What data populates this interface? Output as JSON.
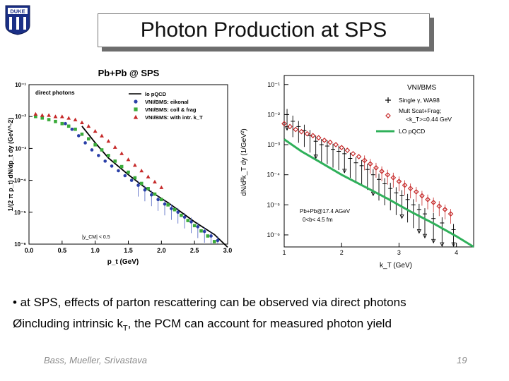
{
  "slide": {
    "title": "Photon Production at SPS",
    "bullet1": "• at SPS, effects of parton rescattering can be observed via direct photons",
    "bullet2_arrow": "Ø",
    "bullet2_pre": "including intrinsic k",
    "bullet2_sub": "T",
    "bullet2_post": ", the PCM can account for measured photon yield",
    "footer_left": "Bass, Mueller, Srivastava",
    "footer_right": "19",
    "logo_text": "DUKE"
  },
  "chart_data": [
    {
      "type": "scatter",
      "title": "Pb+Pb @ SPS",
      "xlabel": "p_t (GeV)",
      "ylabel": "1/(2 π p_t) dN/dp_t dy (GeV^-2)",
      "xlim": [
        0.0,
        3.0
      ],
      "ylim_log10": [
        -6,
        -1
      ],
      "xticks": [
        "0.0",
        "0.5",
        "1.0",
        "1.5",
        "2.0",
        "2.5",
        "3.0"
      ],
      "yticks": [
        "10⁻¹",
        "10⁻²",
        "10⁻³",
        "10⁻⁴",
        "10⁻⁵",
        "10⁻⁶"
      ],
      "text_label": "direct photons",
      "annotation": "|y_CM| < 0.5",
      "legend": [
        "lo pQCD",
        "VNI/BMS: eikonal",
        "VNI/BMS: coll & frag",
        "VNI/BMS: with intr. k_T"
      ],
      "series": [
        {
          "name": "lo pQCD",
          "kind": "line",
          "color": "#000000",
          "x": [
            0.8,
            1.0,
            1.2,
            1.5,
            1.8,
            2.1,
            2.5,
            2.8,
            3.0
          ],
          "y": [
            0.005,
            0.0015,
            0.0005,
            0.00015,
            5e-05,
            2e-05,
            5e-06,
            2e-06,
            8e-07
          ]
        },
        {
          "name": "VNI/BMS: eikonal",
          "kind": "marker",
          "shape": "circle",
          "color": "#2a3fa8",
          "x": [
            0.55,
            0.65,
            0.75,
            0.85,
            0.95,
            1.05,
            1.15,
            1.25,
            1.35,
            1.45,
            1.55,
            1.65,
            1.75,
            1.85,
            1.95,
            2.05,
            2.15,
            2.25,
            2.35,
            2.45,
            2.55,
            2.65,
            2.75,
            2.85
          ],
          "y": [
            0.006,
            0.004,
            0.0025,
            0.0015,
            0.0009,
            0.0006,
            0.0004,
            0.00028,
            0.0002,
            0.00014,
            0.0001,
            7e-05,
            5e-05,
            3.5e-05,
            2.5e-05,
            1.8e-05,
            1.3e-05,
            1e-05,
            7e-06,
            5e-06,
            3.5e-06,
            2.5e-06,
            1.8e-06,
            1.3e-06
          ]
        },
        {
          "name": "VNI/BMS: coll & frag",
          "kind": "marker",
          "shape": "square",
          "color": "#3aab3a",
          "x": [
            0.1,
            0.2,
            0.3,
            0.4,
            0.5,
            0.6,
            0.7,
            0.8,
            0.9,
            1.0,
            1.1,
            1.2,
            1.3,
            1.4,
            1.5,
            1.6,
            1.7,
            1.8,
            1.9,
            2.0,
            2.1,
            2.2,
            2.3,
            2.4,
            2.5,
            2.6,
            2.7,
            2.8,
            2.9
          ],
          "y": [
            0.01,
            0.009,
            0.008,
            0.007,
            0.006,
            0.005,
            0.004,
            0.0028,
            0.002,
            0.0013,
            0.0009,
            0.0006,
            0.0004,
            0.00027,
            0.00018,
            0.00012,
            8e-05,
            5.5e-05,
            3.7e-05,
            2.5e-05,
            1.7e-05,
            1.2e-05,
            8e-06,
            5.5e-06,
            3.8e-06,
            2.6e-06,
            1.8e-06,
            1.2e-06,
            8e-07
          ]
        },
        {
          "name": "VNI/BMS: with intr. k_T",
          "kind": "marker",
          "shape": "triangle",
          "color": "#c62a2a",
          "x": [
            0.1,
            0.2,
            0.3,
            0.4,
            0.5,
            0.6,
            0.7,
            0.8,
            0.9,
            1.0,
            1.1,
            1.2,
            1.3,
            1.4,
            1.5,
            1.6,
            1.7,
            1.8,
            1.9,
            2.0
          ],
          "y": [
            0.012,
            0.011,
            0.011,
            0.01,
            0.01,
            0.009,
            0.008,
            0.0065,
            0.005,
            0.0035,
            0.0025,
            0.0017,
            0.0011,
            0.0007,
            0.00045,
            0.0003,
            0.0002,
            0.00013,
            9e-05,
            6e-05
          ]
        }
      ]
    },
    {
      "type": "scatter",
      "title": "VNI/BMS",
      "xlabel": "k_T (GeV)",
      "ylabel": "dN/d²k_T dy (1/GeV²)",
      "xlim": [
        1.0,
        4.3
      ],
      "ylim_log10": [
        -6.4,
        -0.7
      ],
      "xticks": [
        "1",
        "2",
        "3",
        "4"
      ],
      "yticks": [
        "10⁻¹",
        "10⁻²",
        "10⁻³",
        "10⁻⁴",
        "10⁻⁵",
        "10⁻⁶"
      ],
      "legend": [
        "Single γ, WA98",
        "Mult Scat+Frag; <k_T>=0.44 GeV",
        "LO pQCD"
      ],
      "annotation_lines": [
        "Pb+Pb@17.4 AGeV",
        "0<b< 4.5 fm"
      ],
      "series": [
        {
          "name": "Single γ, WA98",
          "kind": "errorbar",
          "color": "#000000",
          "x": [
            1.05,
            1.15,
            1.25,
            1.35,
            1.45,
            1.55,
            1.65,
            1.75,
            1.85,
            1.95,
            2.05,
            2.15,
            2.25,
            2.35,
            2.45,
            2.55,
            2.65,
            2.75,
            2.85,
            2.95,
            3.05,
            3.15,
            3.25,
            3.35,
            3.45,
            3.6,
            3.75,
            3.95
          ],
          "y": [
            0.01,
            0.006,
            0.004,
            0.003,
            0.002,
            0.0013,
            0.001,
            0.0009,
            0.0007,
            0.0006,
            0.0005,
            0.00035,
            0.00025,
            0.0002,
            0.00015,
            0.0001,
            7e-05,
            5e-05,
            3.5e-05,
            2.5e-05,
            2e-05,
            1.5e-05,
            1e-05,
            7e-06,
            5e-06,
            3.5e-06,
            2.5e-06,
            1.5e-06
          ]
        },
        {
          "name": "Mult Scat+Frag; <k_T>=0.44 GeV",
          "kind": "marker",
          "shape": "diamond",
          "color": "#c62a2a",
          "x": [
            1.0,
            1.1,
            1.2,
            1.3,
            1.4,
            1.5,
            1.6,
            1.7,
            1.8,
            1.9,
            2.0,
            2.1,
            2.2,
            2.3,
            2.4,
            2.5,
            2.6,
            2.7,
            2.8,
            2.9,
            3.0,
            3.1,
            3.2,
            3.3,
            3.4,
            3.5,
            3.6,
            3.7,
            3.8,
            3.9
          ],
          "y": [
            0.005,
            0.004,
            0.0032,
            0.0027,
            0.0023,
            0.002,
            0.0017,
            0.0014,
            0.0012,
            0.001,
            0.0008,
            0.00065,
            0.0005,
            0.0004,
            0.0003,
            0.00023,
            0.00017,
            0.00013,
            0.0001,
            8e-05,
            6e-05,
            4.5e-05,
            3.5e-05,
            2.7e-05,
            2e-05,
            1.5e-05,
            1.2e-05,
            9e-06,
            7e-06,
            5e-06
          ]
        },
        {
          "name": "LO pQCD",
          "kind": "line",
          "color": "#2fb05a",
          "x": [
            1.0,
            1.3,
            1.6,
            2.0,
            2.4,
            2.8,
            3.2,
            3.6,
            4.0,
            4.3
          ],
          "y": [
            0.0015,
            0.0006,
            0.00028,
            0.0001,
            4e-05,
            1.6e-05,
            6e-06,
            2.4e-06,
            9e-07,
            4e-07
          ]
        }
      ]
    }
  ]
}
